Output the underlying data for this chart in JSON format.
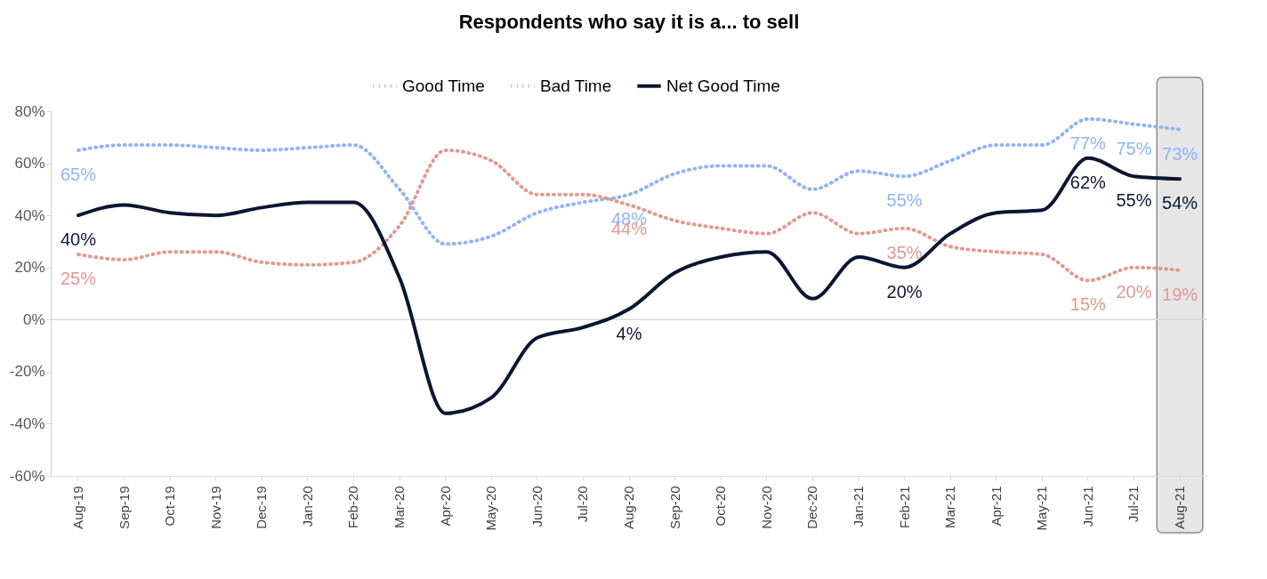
{
  "chart_data": {
    "type": "line",
    "title": "Respondents who say it is a... to sell",
    "categories": [
      "Aug-19",
      "Sep-19",
      "Oct-19",
      "Nov-19",
      "Dec-19",
      "Jan-20",
      "Feb-20",
      "Mar-20",
      "Apr-20",
      "May-20",
      "Jun-20",
      "Jul-20",
      "Aug-20",
      "Sep-20",
      "Oct-20",
      "Nov-20",
      "Dec-20",
      "Jan-21",
      "Feb-21",
      "Mar-21",
      "Apr-21",
      "May-21",
      "Jun-21",
      "Jul-21",
      "Aug-21"
    ],
    "series": [
      {
        "name": "Good Time",
        "color": "#8fb4f5",
        "line_style": "dotted",
        "values": [
          65,
          67,
          67,
          66,
          65,
          66,
          67,
          50,
          29,
          32,
          41,
          45,
          48,
          56,
          59,
          59,
          50,
          57,
          55,
          61,
          67,
          67,
          77,
          75,
          73
        ],
        "value_labels": [
          "65%",
          null,
          null,
          null,
          null,
          null,
          null,
          null,
          null,
          null,
          null,
          null,
          "48%",
          null,
          null,
          null,
          null,
          null,
          "55%",
          null,
          null,
          null,
          "77%",
          "75%",
          "73%"
        ]
      },
      {
        "name": "Bad Time",
        "color": "#e09a90",
        "line_style": "dotted",
        "values": [
          25,
          23,
          26,
          26,
          22,
          21,
          22,
          36,
          65,
          61,
          48,
          48,
          44,
          38,
          35,
          33,
          41,
          33,
          35,
          28,
          26,
          25,
          15,
          20,
          19
        ],
        "value_labels": [
          "25%",
          null,
          null,
          null,
          null,
          null,
          null,
          null,
          null,
          null,
          null,
          null,
          "44%",
          null,
          null,
          null,
          null,
          null,
          "35%",
          null,
          null,
          null,
          "15%",
          "20%",
          "19%"
        ]
      },
      {
        "name": "Net Good Time",
        "color": "#0b1631",
        "line_style": "solid",
        "values": [
          40,
          44,
          41,
          40,
          43,
          45,
          45,
          16,
          -36,
          -30,
          -7,
          -3,
          4,
          18,
          24,
          26,
          8,
          24,
          20,
          33,
          41,
          42,
          62,
          55,
          54
        ],
        "value_labels": [
          "40%",
          null,
          null,
          null,
          null,
          null,
          null,
          null,
          null,
          null,
          null,
          null,
          "4%",
          null,
          null,
          null,
          null,
          null,
          "20%",
          null,
          null,
          null,
          "62%",
          "55%",
          "54%"
        ]
      }
    ],
    "ylim": [
      -60,
      80
    ],
    "yticks": [
      {
        "value": -60,
        "label": "-60%"
      },
      {
        "value": -40,
        "label": "-40%"
      },
      {
        "value": -20,
        "label": "-20%"
      },
      {
        "value": 0,
        "label": "0%"
      },
      {
        "value": 20,
        "label": "20%"
      },
      {
        "value": 40,
        "label": "40%"
      },
      {
        "value": 60,
        "label": "60%"
      },
      {
        "value": 80,
        "label": "80%"
      }
    ],
    "ref_lines": [
      {
        "axis": "y",
        "value": 0,
        "color": "#d9d9d9"
      }
    ],
    "bands": [
      {
        "axis": "x",
        "from": "Aug-21",
        "to": "Aug-21",
        "color": "#e6e6e6"
      }
    ],
    "grid": false,
    "legend": "top"
  }
}
